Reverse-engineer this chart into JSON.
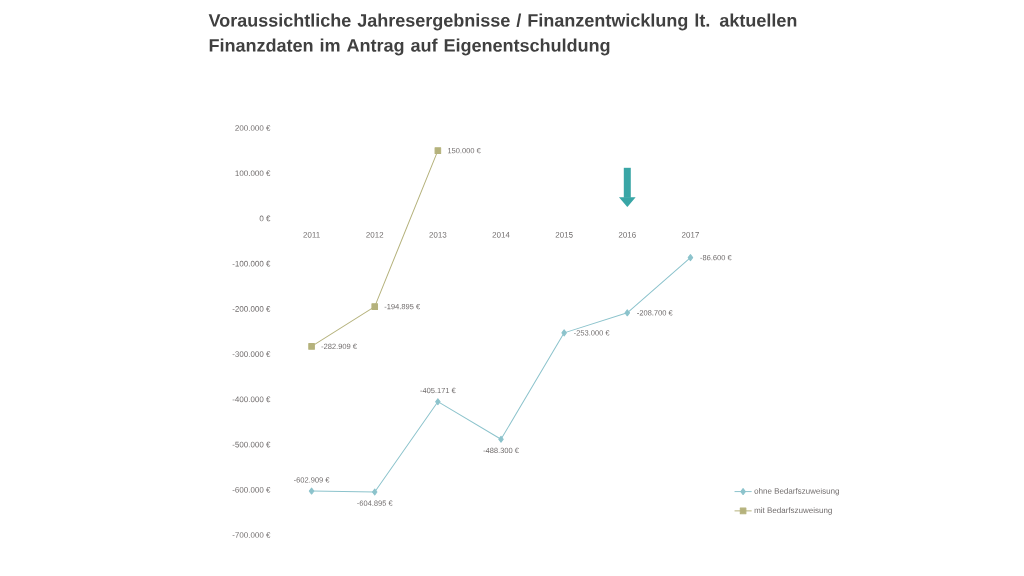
{
  "chart_data": {
    "type": "line",
    "title": "Voraussichtliche Jahresergebnisse / Finanzentwicklung lt. aktuellen Finanzdaten im Antrag auf Eigenentschuldung",
    "categories": [
      "2011",
      "2012",
      "2013",
      "2014",
      "2015",
      "2016",
      "2017"
    ],
    "series": [
      {
        "name": "ohne Bedarfszuweisung",
        "color": "#8cc3cc",
        "marker": "diamond",
        "values": [
          -602909,
          -604895,
          -405171,
          -488300,
          -253000,
          -208700,
          -86600
        ],
        "value_labels": [
          "-602.909 €",
          "-604.895 €",
          "-405.171 €",
          "-488.300 €",
          "-253.000 €",
          "-208.700 €",
          "-86.600 €"
        ]
      },
      {
        "name": "mit Bedarfszuweisung",
        "color": "#b5b27c",
        "marker": "square",
        "values": [
          -282909,
          -194895,
          150000,
          null,
          null,
          null,
          null
        ],
        "value_labels": [
          "-282.909 €",
          "-194.895 €",
          "150.000 €",
          null,
          null,
          null,
          null
        ]
      }
    ],
    "ylim": [
      -700000,
      200000
    ],
    "yticks": [
      {
        "value": 200000,
        "label": "200.000 €"
      },
      {
        "value": 100000,
        "label": "100.000 €"
      },
      {
        "value": 0,
        "label": "0 €"
      },
      {
        "value": -100000,
        "label": "-100.000 €"
      },
      {
        "value": -200000,
        "label": "-200.000 €"
      },
      {
        "value": -300000,
        "label": "-300.000 €"
      },
      {
        "value": -400000,
        "label": "-400.000 €"
      },
      {
        "value": -500000,
        "label": "-500.000 €"
      },
      {
        "value": -600000,
        "label": "-600.000 €"
      },
      {
        "value": -700000,
        "label": "-700.000 €"
      }
    ],
    "grid": false,
    "legend": "bottom right",
    "line_style": "solid"
  }
}
